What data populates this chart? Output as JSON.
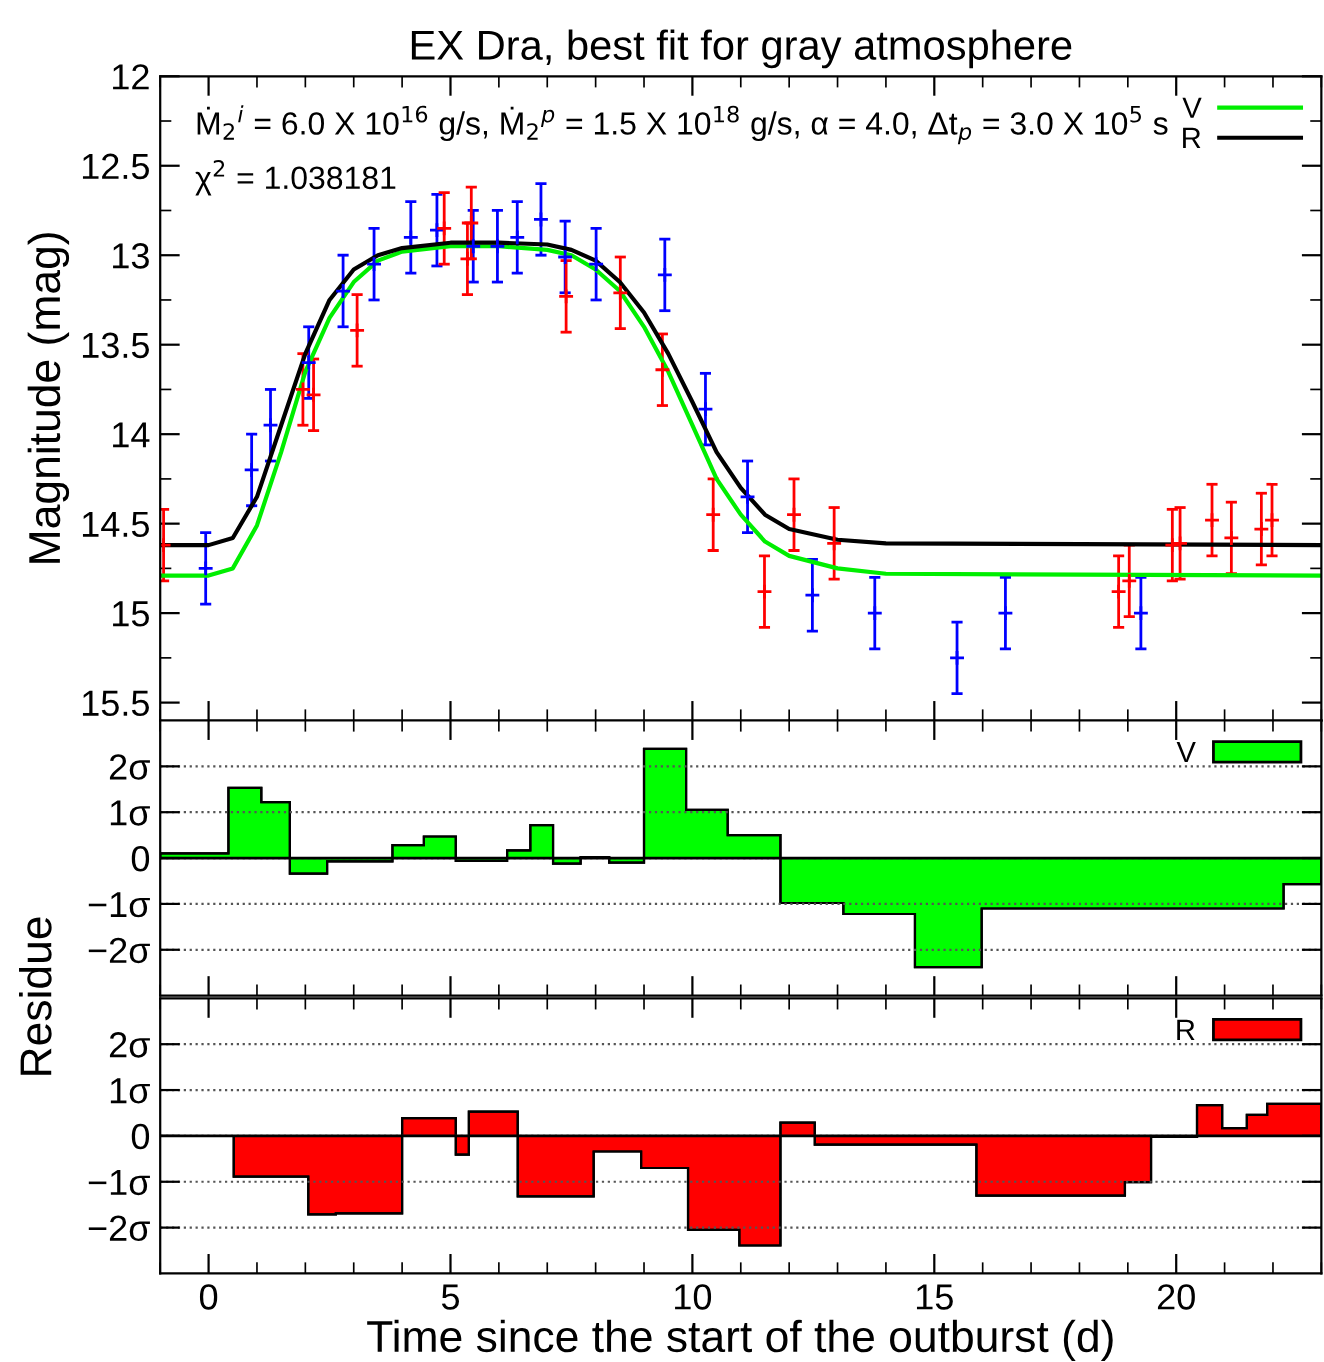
{
  "chart_data": [
    {
      "type": "scatter",
      "title": "EX Dra, best fit for gray atmosphere",
      "ylabel": "Magnitude (mag)",
      "xlim": [
        -1,
        23
      ],
      "xticks": [
        0,
        5,
        10,
        15,
        20
      ],
      "ylim": [
        15.6,
        12
      ],
      "yticks": [
        12,
        12.5,
        13,
        13.5,
        14,
        14.5,
        15,
        15.5
      ],
      "tick_labels": "y",
      "legend": "top right",
      "grid": false,
      "annotations": [
        "Ṁ$_{2}$$^{i}$ = 6.0 X 10$^{16}$ g/s, Ṁ$_{2}$$^{p}$ = 1.5 X 10$^{18}$ g/s, α = 4.0, Δt$_{p}$ = 3.0 X 10$^{5}$ s",
        "χ$^{2}$ = 1.038181"
      ],
      "series": [
        {
          "type": "scatter",
          "color": "#0000ff",
          "marker": "cross",
          "x": [
            -0.06,
            0.89,
            1.28,
            2.07,
            2.78,
            3.42,
            4.18,
            4.72,
            5.47,
            5.97,
            6.38,
            6.87,
            7.37,
            8.01,
            9.43,
            10.27,
            11.14,
            12.48,
            13.77,
            15.47,
            16.47,
            19.27
          ],
          "values": [
            14.75,
            14.2,
            13.95,
            13.6,
            13.2,
            13.05,
            12.9,
            12.86,
            12.95,
            12.95,
            12.9,
            12.8,
            13.01,
            13.05,
            13.11,
            13.86,
            14.35,
            14.9,
            15.0,
            15.25,
            15.0,
            15.0
          ],
          "errors": [
            0.2,
            0.2,
            0.2,
            0.2,
            0.2,
            0.2,
            0.2,
            0.2,
            0.2,
            0.2,
            0.2,
            0.2,
            0.2,
            0.2,
            0.2,
            0.2,
            0.2,
            0.2,
            0.2,
            0.2,
            0.2,
            0.2
          ]
        },
        {
          "type": "scatter",
          "color": "#ff0000",
          "marker": "cross",
          "x": [
            -0.93,
            1.95,
            2.17,
            3.07,
            4.87,
            5.35,
            5.43,
            7.39,
            8.51,
            9.38,
            10.43,
            11.49,
            12.1,
            12.93,
            18.81,
            19.03,
            19.92,
            20.08,
            20.74,
            21.14,
            21.76,
            21.98
          ],
          "values": [
            14.62,
            13.75,
            13.78,
            13.42,
            12.85,
            13.02,
            12.82,
            13.23,
            13.21,
            13.64,
            14.45,
            14.88,
            14.45,
            14.61,
            14.88,
            14.82,
            14.62,
            14.61,
            14.48,
            14.58,
            14.53,
            14.48
          ],
          "errors": [
            0.2,
            0.2,
            0.2,
            0.2,
            0.2,
            0.2,
            0.2,
            0.2,
            0.2,
            0.2,
            0.2,
            0.2,
            0.2,
            0.2,
            0.2,
            0.2,
            0.2,
            0.2,
            0.2,
            0.2,
            0.2,
            0.2
          ]
        },
        {
          "type": "line",
          "name": "V",
          "color": "#00ee00",
          "marker": "none",
          "x": [
            -1,
            0,
            0.5,
            1,
            1.5,
            2,
            2.5,
            3,
            3.5,
            4,
            5,
            6,
            7,
            7.5,
            8,
            8.5,
            9,
            9.5,
            10,
            10.5,
            11,
            11.5,
            12,
            13,
            14,
            23
          ],
          "values": [
            14.79,
            14.79,
            14.75,
            14.51,
            14.1,
            13.65,
            13.35,
            13.15,
            13.03,
            12.98,
            12.95,
            12.95,
            12.97,
            13.0,
            13.08,
            13.2,
            13.4,
            13.65,
            13.95,
            14.25,
            14.45,
            14.6,
            14.68,
            14.75,
            14.78,
            14.79
          ]
        },
        {
          "type": "line",
          "name": "R",
          "color": "#000000",
          "marker": "none",
          "x": [
            -1,
            0,
            0.5,
            1,
            1.5,
            2,
            2.5,
            3,
            3.5,
            4,
            5,
            6,
            7,
            7.5,
            8,
            8.5,
            9,
            9.5,
            10,
            10.5,
            11,
            11.5,
            12,
            13,
            14,
            23
          ],
          "values": [
            14.62,
            14.62,
            14.58,
            14.35,
            13.95,
            13.55,
            13.25,
            13.08,
            13.0,
            12.96,
            12.93,
            12.93,
            12.94,
            12.97,
            13.03,
            13.15,
            13.32,
            13.55,
            13.82,
            14.1,
            14.3,
            14.45,
            14.53,
            14.59,
            14.61,
            14.62
          ]
        }
      ]
    },
    {
      "type": "histogram",
      "ylabel": "Residue",
      "xlim": [
        -1,
        23
      ],
      "xticks": [
        0,
        5,
        10,
        15,
        20
      ],
      "ylim": [
        -3,
        3
      ],
      "yticks": [
        {
          "value": -2,
          "label": "−2σ"
        },
        {
          "value": -1,
          "label": "−1σ"
        },
        0,
        {
          "value": 1,
          "label": "1σ"
        },
        {
          "value": 2,
          "label": "2σ"
        }
      ],
      "tick_labels": "y",
      "legend": "top right",
      "grid": "y",
      "bins": [
        -1,
        0.41,
        1.09,
        1.68,
        2.45,
        3.12,
        3.8,
        4.45,
        5.11,
        5.71,
        6.17,
        6.65,
        7.12,
        7.69,
        8.28,
        9.0,
        9.87,
        10.73,
        11.82,
        13.12,
        14.6,
        15.98,
        17.88,
        22.22,
        23
      ],
      "series": [
        {
          "name": "V",
          "color": "#00ff00",
          "values": [
            0.1,
            1.53,
            1.22,
            -0.34,
            -0.07,
            -0.07,
            0.28,
            0.47,
            -0.06,
            -0.06,
            0.17,
            0.72,
            -0.12,
            0.02,
            -0.1,
            2.38,
            1.05,
            0.5,
            -0.98,
            -1.22,
            -2.38,
            -1.1,
            -1.1,
            -0.57
          ]
        }
      ]
    },
    {
      "type": "histogram",
      "xlabel": "Time since the start of the outburst (d)",
      "xlim": [
        -1,
        23
      ],
      "xticks": [
        0,
        5,
        10,
        15,
        20
      ],
      "ylim": [
        -3,
        3
      ],
      "yticks": [
        {
          "value": -2,
          "label": "−2σ"
        },
        {
          "value": -1,
          "label": "−1σ"
        },
        0,
        {
          "value": 1,
          "label": "1σ"
        },
        {
          "value": 2,
          "label": "2σ"
        }
      ],
      "legend": "top right",
      "grid": "y",
      "bins": [
        0.52,
        2.06,
        2.63,
        4.0,
        5.11,
        5.38,
        6.39,
        7.96,
        8.94,
        9.91,
        10.97,
        11.82,
        12.53,
        15.87,
        18.94,
        19.48,
        20.43,
        20.95,
        21.46,
        21.88,
        23
      ],
      "series": [
        {
          "name": "R",
          "color": "#ff0000",
          "values": [
            -0.89,
            -1.71,
            -1.69,
            0.39,
            -0.41,
            0.53,
            -1.32,
            -0.34,
            -0.7,
            -2.05,
            -2.39,
            0.29,
            -0.19,
            -1.3,
            -1.01,
            -0.02,
            0.67,
            0.17,
            0.46,
            0.7
          ]
        }
      ]
    }
  ]
}
